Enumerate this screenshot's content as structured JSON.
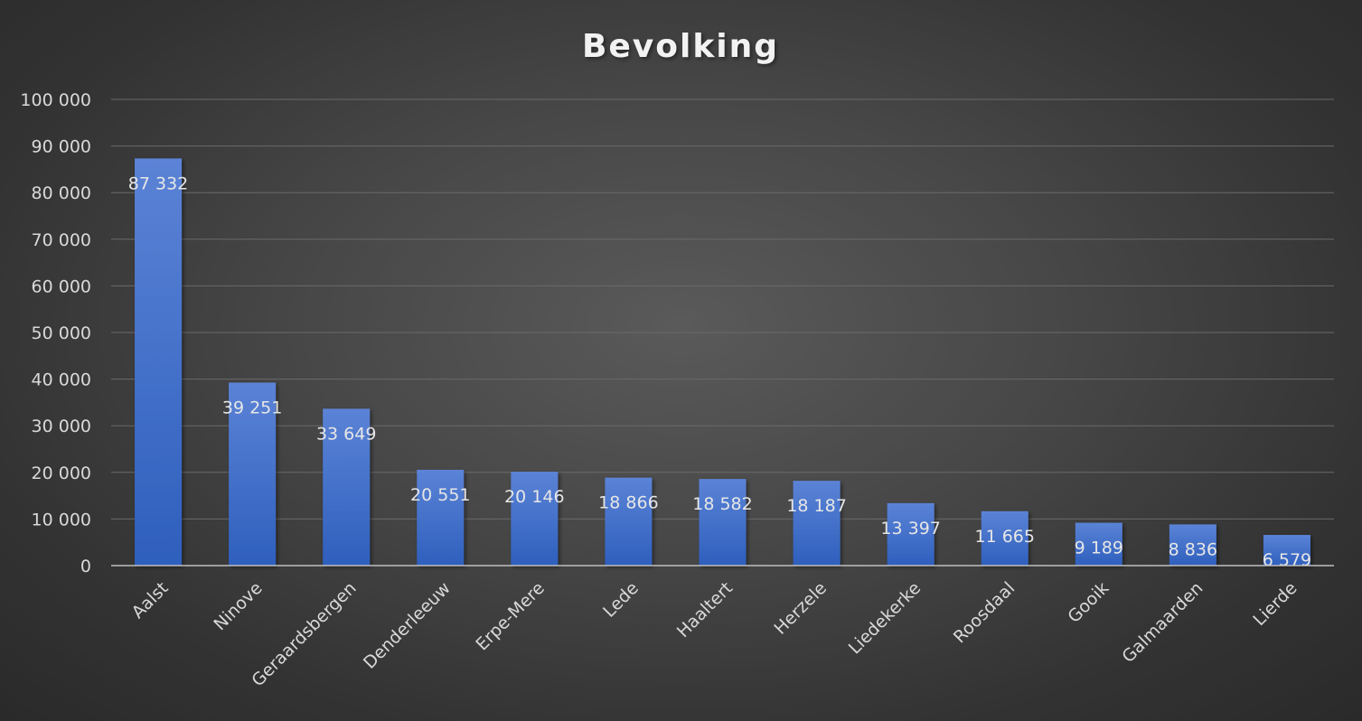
{
  "chart_data": {
    "type": "bar",
    "title": "Bevolking",
    "categories": [
      "Aalst",
      "Ninove",
      "Geraardsbergen",
      "Denderleeuw",
      "Erpe-Mere",
      "Lede",
      "Haaltert",
      "Herzele",
      "Liedekerke",
      "Roosdaal",
      "Gooik",
      "Galmaarden",
      "Lierde"
    ],
    "values": [
      87332,
      39251,
      33649,
      20551,
      20146,
      18866,
      18582,
      18187,
      13397,
      11665,
      9189,
      8836,
      6579
    ],
    "value_labels": [
      "87 332",
      "39 251",
      "33 649",
      "20 551",
      "20 146",
      "18 866",
      "18 582",
      "18 187",
      "13 397",
      "11 665",
      "9 189",
      "8 836",
      "6 579"
    ],
    "yticks": [
      0,
      10000,
      20000,
      30000,
      40000,
      50000,
      60000,
      70000,
      80000,
      90000,
      100000
    ],
    "ytick_labels": [
      "0",
      "10 000",
      "20 000",
      "30 000",
      "40 000",
      "50 000",
      "60 000",
      "70 000",
      "80 000",
      "90 000",
      "100 000"
    ],
    "ylim": [
      0,
      100000
    ],
    "xlabel": "",
    "ylabel": "",
    "grid": true,
    "legend": "none",
    "colors": {
      "bar_top": "#5b83d6",
      "bar_bottom": "#2e5fbd",
      "gridline": "#6a6a6a",
      "axis": "#bfbfbf"
    }
  }
}
